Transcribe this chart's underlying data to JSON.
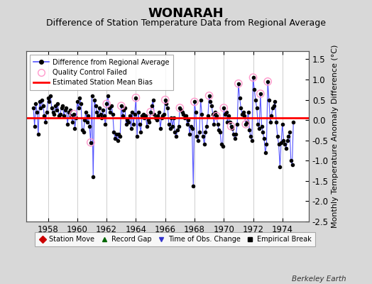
{
  "title": "WONARAH",
  "subtitle": "Difference of Station Temperature Data from Regional Average",
  "ylabel": "Monthly Temperature Anomaly Difference (°C)",
  "xlabel_label": "Berkeley Earth",
  "xlim": [
    1956.5,
    1975.8
  ],
  "ylim": [
    -2.5,
    1.7
  ],
  "yticks": [
    -2.5,
    -2.0,
    -1.5,
    -1.0,
    -0.5,
    0.0,
    0.5,
    1.0,
    1.5
  ],
  "xticks": [
    1958,
    1960,
    1962,
    1964,
    1966,
    1968,
    1970,
    1972,
    1974
  ],
  "bias_level": 0.05,
  "background_color": "#d8d8d8",
  "plot_bg_color": "#ffffff",
  "line_color": "#5555ff",
  "marker_color": "#000000",
  "bias_color": "#ff0000",
  "qc_marker_color": "#ff99cc",
  "title_fontsize": 13,
  "subtitle_fontsize": 9,
  "data": [
    1957.0,
    0.3,
    1957.083,
    -0.15,
    1957.167,
    0.4,
    1957.25,
    0.2,
    1957.333,
    -0.35,
    1957.417,
    0.45,
    1957.5,
    0.3,
    1957.583,
    0.5,
    1957.667,
    0.35,
    1957.75,
    0.1,
    1957.833,
    -0.05,
    1957.917,
    0.2,
    1958.0,
    0.55,
    1958.083,
    0.45,
    1958.167,
    0.6,
    1958.25,
    0.3,
    1958.333,
    0.2,
    1958.417,
    0.15,
    1958.5,
    0.35,
    1958.583,
    0.25,
    1958.667,
    0.4,
    1958.75,
    0.1,
    1958.833,
    0.15,
    1958.917,
    0.3,
    1959.0,
    0.35,
    1959.083,
    0.1,
    1959.167,
    0.25,
    1959.25,
    0.3,
    1959.333,
    -0.1,
    1959.417,
    0.2,
    1959.5,
    0.25,
    1959.583,
    0.1,
    1959.667,
    -0.05,
    1959.75,
    0.15,
    1959.833,
    -0.2,
    1959.917,
    0.05,
    1960.0,
    0.45,
    1960.083,
    0.3,
    1960.167,
    0.55,
    1960.25,
    0.4,
    1960.333,
    -0.25,
    1960.417,
    -0.3,
    1960.5,
    0.0,
    1960.583,
    0.2,
    1960.667,
    -0.05,
    1960.75,
    0.1,
    1960.833,
    -0.15,
    1960.917,
    -0.55,
    1961.0,
    0.6,
    1961.083,
    -1.4,
    1961.167,
    0.5,
    1961.25,
    0.35,
    1961.333,
    0.2,
    1961.417,
    0.1,
    1961.5,
    0.3,
    1961.583,
    0.15,
    1961.667,
    0.05,
    1961.75,
    0.25,
    1961.833,
    0.1,
    1961.917,
    -0.1,
    1962.0,
    0.4,
    1962.083,
    0.6,
    1962.167,
    0.3,
    1962.25,
    0.2,
    1962.333,
    0.35,
    1962.417,
    0.15,
    1962.5,
    -0.3,
    1962.583,
    -0.45,
    1962.667,
    -0.35,
    1962.75,
    -0.5,
    1962.833,
    -0.35,
    1962.917,
    -0.4,
    1963.0,
    0.35,
    1963.083,
    0.1,
    1963.167,
    0.25,
    1963.25,
    0.3,
    1963.333,
    -0.1,
    1963.417,
    0.0,
    1963.5,
    -0.05,
    1963.583,
    0.1,
    1963.667,
    -0.2,
    1963.75,
    0.2,
    1963.833,
    -0.1,
    1963.917,
    0.15,
    1964.0,
    0.55,
    1964.083,
    -0.4,
    1964.167,
    0.2,
    1964.25,
    -0.1,
    1964.333,
    -0.3,
    1964.417,
    0.1,
    1964.5,
    0.15,
    1964.583,
    0.05,
    1964.667,
    0.1,
    1964.75,
    -0.15,
    1964.833,
    0.0,
    1964.917,
    -0.05,
    1965.0,
    0.2,
    1965.083,
    0.35,
    1965.167,
    0.5,
    1965.25,
    0.15,
    1965.333,
    0.05,
    1965.417,
    0.0,
    1965.5,
    0.1,
    1965.583,
    0.2,
    1965.667,
    -0.2,
    1965.75,
    0.05,
    1965.833,
    0.1,
    1965.917,
    0.15,
    1966.0,
    0.5,
    1966.083,
    0.4,
    1966.167,
    0.3,
    1966.25,
    -0.1,
    1966.333,
    -0.2,
    1966.417,
    0.05,
    1966.5,
    -0.15,
    1966.583,
    0.05,
    1966.667,
    -0.3,
    1966.75,
    -0.4,
    1966.833,
    -0.25,
    1966.917,
    -0.15,
    1967.0,
    0.3,
    1967.083,
    0.25,
    1967.167,
    0.2,
    1967.25,
    0.15,
    1967.333,
    0.05,
    1967.417,
    0.1,
    1967.5,
    -0.1,
    1967.583,
    0.0,
    1967.667,
    -0.35,
    1967.75,
    -0.15,
    1967.833,
    -0.2,
    1967.917,
    -1.62,
    1968.0,
    0.45,
    1968.083,
    0.2,
    1968.167,
    -0.4,
    1968.25,
    -0.5,
    1968.333,
    -0.3,
    1968.417,
    0.5,
    1968.5,
    0.15,
    1968.583,
    -0.4,
    1968.667,
    -0.6,
    1968.75,
    -0.3,
    1968.833,
    -0.15,
    1968.917,
    0.1,
    1969.0,
    0.6,
    1969.083,
    0.45,
    1969.167,
    0.35,
    1969.25,
    0.15,
    1969.333,
    -0.1,
    1969.417,
    0.2,
    1969.5,
    0.1,
    1969.583,
    -0.1,
    1969.667,
    -0.25,
    1969.75,
    -0.3,
    1969.833,
    -0.6,
    1969.917,
    -0.65,
    1970.0,
    0.3,
    1970.083,
    0.15,
    1970.167,
    0.2,
    1970.25,
    -0.05,
    1970.333,
    0.1,
    1970.417,
    -0.05,
    1970.5,
    -0.15,
    1970.583,
    -0.2,
    1970.667,
    -0.35,
    1970.75,
    -0.45,
    1970.833,
    -0.35,
    1970.917,
    -0.1,
    1971.0,
    0.9,
    1971.083,
    0.55,
    1971.167,
    0.3,
    1971.25,
    0.15,
    1971.333,
    0.2,
    1971.417,
    0.1,
    1971.5,
    -0.1,
    1971.583,
    -0.05,
    1971.667,
    0.2,
    1971.75,
    -0.25,
    1971.833,
    -0.4,
    1971.917,
    -0.5,
    1972.0,
    1.05,
    1972.083,
    0.75,
    1972.167,
    0.5,
    1972.25,
    0.3,
    1972.333,
    -0.1,
    1972.417,
    -0.2,
    1972.5,
    0.65,
    1972.583,
    -0.15,
    1972.667,
    -0.3,
    1972.75,
    -0.45,
    1972.833,
    -0.8,
    1972.917,
    -0.6,
    1973.0,
    0.95,
    1973.083,
    0.5,
    1973.167,
    -0.05,
    1973.25,
    0.1,
    1973.333,
    0.3,
    1973.417,
    0.35,
    1973.5,
    0.45,
    1973.583,
    -0.05,
    1973.667,
    -0.4,
    1973.75,
    -0.6,
    1973.833,
    -1.15,
    1973.917,
    -0.55,
    1974.0,
    -0.1,
    1974.083,
    -0.5,
    1974.167,
    -0.6,
    1974.25,
    -0.7,
    1974.333,
    -0.5,
    1974.417,
    -0.4,
    1974.5,
    -0.3,
    1974.583,
    -1.0,
    1974.667,
    -1.1,
    1974.75,
    -0.05
  ],
  "qc_failed_indices": [
    33,
    47,
    60,
    72,
    84,
    96,
    108,
    120,
    132,
    144,
    150,
    156,
    162,
    168,
    174,
    180,
    186,
    192
  ],
  "legend2_items": [
    {
      "label": "Station Move",
      "color": "#cc0000",
      "marker": "D"
    },
    {
      "label": "Record Gap",
      "color": "#006600",
      "marker": "^"
    },
    {
      "label": "Time of Obs. Change",
      "color": "#3333cc",
      "marker": "v"
    },
    {
      "label": "Empirical Break",
      "color": "#000000",
      "marker": "s"
    }
  ]
}
